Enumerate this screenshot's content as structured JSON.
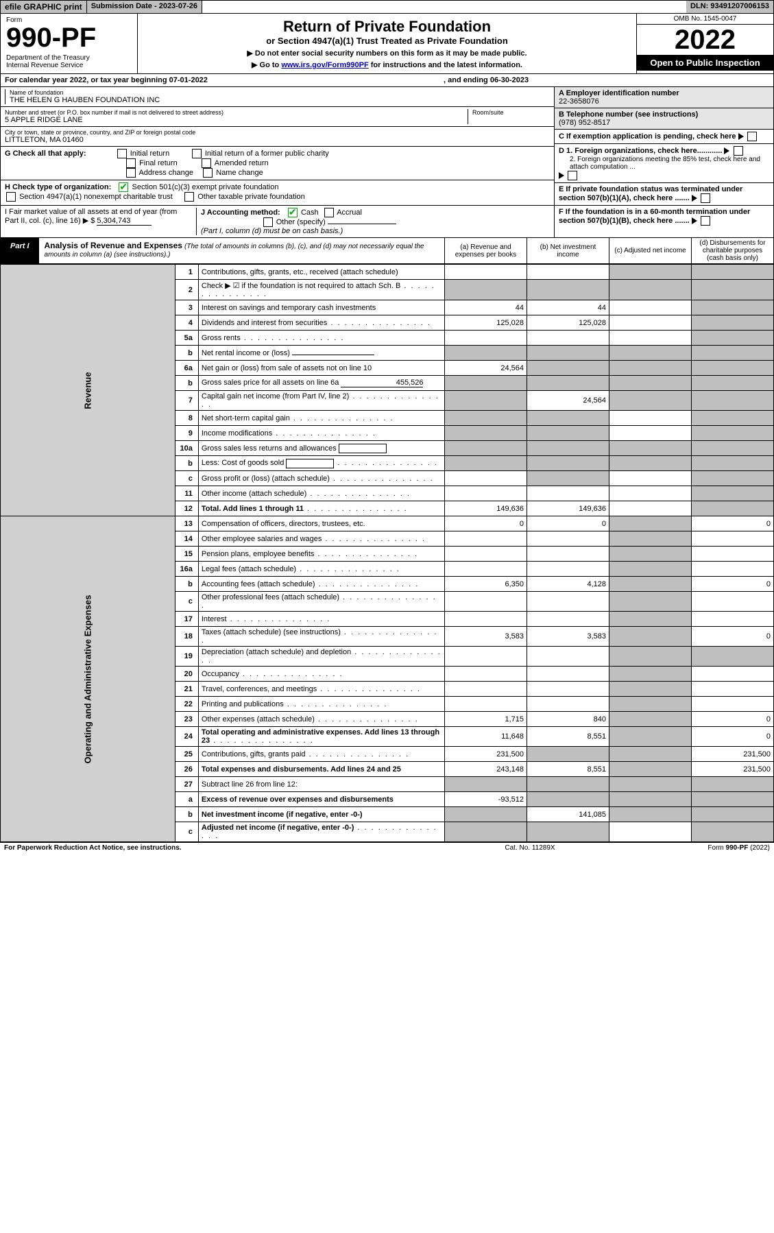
{
  "topbar": {
    "efile_label": "efile GRAPHIC print",
    "subdate_label": "Submission Date - 2023-07-26",
    "dln": "DLN: 93491207006153"
  },
  "header": {
    "form_word": "Form",
    "form_no": "990-PF",
    "dept": "Department of the Treasury\nInternal Revenue Service",
    "title": "Return of Private Foundation",
    "subtitle": "or Section 4947(a)(1) Trust Treated as Private Foundation",
    "note1": "▶ Do not enter social security numbers on this form as it may be made public.",
    "note2_pre": "▶ Go to ",
    "note2_link": "www.irs.gov/Form990PF",
    "note2_post": " for instructions and the latest information.",
    "omb": "OMB No. 1545-0047",
    "year": "2022",
    "inspect": "Open to Public Inspection"
  },
  "calyear": {
    "text": "For calendar year 2022, or tax year beginning 07-01-2022",
    "ending": ", and ending 06-30-2023"
  },
  "id": {
    "name_lbl": "Name of foundation",
    "name": "THE HELEN G HAUBEN FOUNDATION INC",
    "addr_lbl": "Number and street (or P.O. box number if mail is not delivered to street address)",
    "addr": "5 APPLE RIDGE LANE",
    "room_lbl": "Room/suite",
    "city_lbl": "City or town, state or province, country, and ZIP or foreign postal code",
    "city": "LITTLETON, MA  01460",
    "a_lbl": "A Employer identification number",
    "a_val": "22-3658076",
    "b_lbl": "B Telephone number (see instructions)",
    "b_val": "(978) 952-8517",
    "c_lbl": "C If exemption application is pending, check here",
    "d1_lbl": "D 1. Foreign organizations, check here............",
    "d2_lbl": "2. Foreign organizations meeting the 85% test, check here and attach computation ...",
    "e_lbl": "E  If private foundation status was terminated under section 507(b)(1)(A), check here .......",
    "f_lbl": "F  If the foundation is in a 60-month termination under section 507(b)(1)(B), check here ......."
  },
  "g": {
    "label": "G Check all that apply:",
    "opts": [
      "Initial return",
      "Final return",
      "Address change",
      "Initial return of a former public charity",
      "Amended return",
      "Name change"
    ]
  },
  "h": {
    "label": "H Check type of organization:",
    "opt1": "Section 501(c)(3) exempt private foundation",
    "opt2": "Section 4947(a)(1) nonexempt charitable trust",
    "opt3": "Other taxable private foundation"
  },
  "i": {
    "label": "I Fair market value of all assets at end of year (from Part II, col. (c), line 16) ▶ $",
    "val": "5,304,743"
  },
  "j": {
    "label": "J Accounting method:",
    "cash": "Cash",
    "accrual": "Accrual",
    "other": "Other (specify)",
    "note": "(Part I, column (d) must be on cash basis.)"
  },
  "part1": {
    "tab": "Part I",
    "title": "Analysis of Revenue and Expenses",
    "subtitle": "(The total of amounts in columns (b), (c), and (d) may not necessarily equal the amounts in column (a) (see instructions).)",
    "col_a": "(a)   Revenue and expenses per books",
    "col_b": "(b)   Net investment income",
    "col_c": "(c)   Adjusted net income",
    "col_d": "(d)   Disbursements for charitable purposes (cash basis only)"
  },
  "side": {
    "revenue": "Revenue",
    "expenses": "Operating and Administrative Expenses"
  },
  "rows": [
    {
      "n": "1",
      "t": "Contributions, gifts, grants, etc., received (attach schedule)",
      "a": "",
      "b": "",
      "c": "s",
      "d": "s"
    },
    {
      "n": "2",
      "t": "Check ▶ ☑ if the foundation is not required to attach Sch. B",
      "dot": true,
      "a": "s",
      "b": "s",
      "c": "s",
      "d": "s"
    },
    {
      "n": "3",
      "t": "Interest on savings and temporary cash investments",
      "a": "44",
      "b": "44",
      "c": "",
      "d": "s"
    },
    {
      "n": "4",
      "t": "Dividends and interest from securities",
      "dot": true,
      "a": "125,028",
      "b": "125,028",
      "c": "",
      "d": "s"
    },
    {
      "n": "5a",
      "t": "Gross rents",
      "dot": true,
      "a": "",
      "b": "",
      "c": "",
      "d": "s"
    },
    {
      "n": "b",
      "t": "Net rental income or (loss)",
      "line": true,
      "a": "s",
      "b": "s",
      "c": "s",
      "d": "s"
    },
    {
      "n": "6a",
      "t": "Net gain or (loss) from sale of assets not on line 10",
      "a": "24,564",
      "b": "s",
      "c": "s",
      "d": "s"
    },
    {
      "n": "b",
      "t": "Gross sales price for all assets on line 6a",
      "line": true,
      "lv": "455,526",
      "a": "s",
      "b": "s",
      "c": "s",
      "d": "s"
    },
    {
      "n": "7",
      "t": "Capital gain net income (from Part IV, line 2)",
      "dot": true,
      "a": "s",
      "b": "24,564",
      "c": "s",
      "d": "s"
    },
    {
      "n": "8",
      "t": "Net short-term capital gain",
      "dot": true,
      "a": "s",
      "b": "s",
      "c": "",
      "d": "s"
    },
    {
      "n": "9",
      "t": "Income modifications",
      "dot": true,
      "a": "s",
      "b": "s",
      "c": "",
      "d": "s"
    },
    {
      "n": "10a",
      "t": "Gross sales less returns and allowances",
      "box": true,
      "a": "s",
      "b": "s",
      "c": "s",
      "d": "s"
    },
    {
      "n": "b",
      "t": "Less: Cost of goods sold",
      "dot": true,
      "box": true,
      "a": "s",
      "b": "s",
      "c": "s",
      "d": "s"
    },
    {
      "n": "c",
      "t": "Gross profit or (loss) (attach schedule)",
      "dot": true,
      "a": "",
      "b": "s",
      "c": "",
      "d": "s"
    },
    {
      "n": "11",
      "t": "Other income (attach schedule)",
      "dot": true,
      "a": "",
      "b": "",
      "c": "",
      "d": "s"
    },
    {
      "n": "12",
      "t": "Total. Add lines 1 through 11",
      "dot": true,
      "bold": true,
      "a": "149,636",
      "b": "149,636",
      "c": "",
      "d": "s"
    },
    {
      "n": "13",
      "t": "Compensation of officers, directors, trustees, etc.",
      "a": "0",
      "b": "0",
      "c": "s",
      "d": "0"
    },
    {
      "n": "14",
      "t": "Other employee salaries and wages",
      "dot": true,
      "a": "",
      "b": "",
      "c": "s",
      "d": ""
    },
    {
      "n": "15",
      "t": "Pension plans, employee benefits",
      "dot": true,
      "a": "",
      "b": "",
      "c": "s",
      "d": ""
    },
    {
      "n": "16a",
      "t": "Legal fees (attach schedule)",
      "dot": true,
      "a": "",
      "b": "",
      "c": "s",
      "d": ""
    },
    {
      "n": "b",
      "t": "Accounting fees (attach schedule)",
      "dot": true,
      "a": "6,350",
      "b": "4,128",
      "c": "s",
      "d": "0"
    },
    {
      "n": "c",
      "t": "Other professional fees (attach schedule)",
      "dot": true,
      "a": "",
      "b": "",
      "c": "s",
      "d": ""
    },
    {
      "n": "17",
      "t": "Interest",
      "dot": true,
      "a": "",
      "b": "",
      "c": "s",
      "d": ""
    },
    {
      "n": "18",
      "t": "Taxes (attach schedule) (see instructions)",
      "dot": true,
      "a": "3,583",
      "b": "3,583",
      "c": "s",
      "d": "0"
    },
    {
      "n": "19",
      "t": "Depreciation (attach schedule) and depletion",
      "dot": true,
      "a": "",
      "b": "",
      "c": "s",
      "d": "s"
    },
    {
      "n": "20",
      "t": "Occupancy",
      "dot": true,
      "a": "",
      "b": "",
      "c": "s",
      "d": ""
    },
    {
      "n": "21",
      "t": "Travel, conferences, and meetings",
      "dot": true,
      "a": "",
      "b": "",
      "c": "s",
      "d": ""
    },
    {
      "n": "22",
      "t": "Printing and publications",
      "dot": true,
      "a": "",
      "b": "",
      "c": "s",
      "d": ""
    },
    {
      "n": "23",
      "t": "Other expenses (attach schedule)",
      "dot": true,
      "a": "1,715",
      "b": "840",
      "c": "s",
      "d": "0"
    },
    {
      "n": "24",
      "t": "Total operating and administrative expenses. Add lines 13 through 23",
      "dot": true,
      "bold": true,
      "a": "11,648",
      "b": "8,551",
      "c": "s",
      "d": "0"
    },
    {
      "n": "25",
      "t": "Contributions, gifts, grants paid",
      "dot": true,
      "a": "231,500",
      "b": "s",
      "c": "s",
      "d": "231,500"
    },
    {
      "n": "26",
      "t": "Total expenses and disbursements. Add lines 24 and 25",
      "bold": true,
      "a": "243,148",
      "b": "8,551",
      "c": "s",
      "d": "231,500"
    },
    {
      "n": "27",
      "t": "Subtract line 26 from line 12:",
      "a": "s",
      "b": "s",
      "c": "s",
      "d": "s"
    },
    {
      "n": "a",
      "t": "Excess of revenue over expenses and disbursements",
      "bold": true,
      "a": "-93,512",
      "b": "s",
      "c": "s",
      "d": "s"
    },
    {
      "n": "b",
      "t": "Net investment income (if negative, enter -0-)",
      "bold": true,
      "a": "s",
      "b": "141,085",
      "c": "s",
      "d": "s"
    },
    {
      "n": "c",
      "t": "Adjusted net income (if negative, enter -0-)",
      "dot": true,
      "bold": true,
      "a": "s",
      "b": "s",
      "c": "",
      "d": "s"
    }
  ],
  "footer": {
    "left": "For Paperwork Reduction Act Notice, see instructions.",
    "mid": "Cat. No. 11289X",
    "right": "Form 990-PF (2022)"
  }
}
